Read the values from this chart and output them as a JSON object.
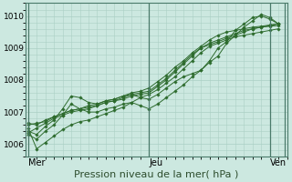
{
  "title": "Pression niveau de la mer( hPa )",
  "ylabel_ticks": [
    1006,
    1007,
    1008,
    1009,
    1010
  ],
  "xtick_labels": [
    "Mer",
    "Jeu",
    "Ven"
  ],
  "xtick_positions": [
    0,
    14,
    28
  ],
  "ylim": [
    1005.6,
    1010.4
  ],
  "xlim": [
    -0.3,
    30
  ],
  "bg_color": "#cce8e0",
  "grid_color": "#aacfc4",
  "line_color": "#2d6b2d",
  "vline_color": "#4a7a6a",
  "series": [
    {
      "x": [
        0,
        1,
        2,
        3,
        4,
        5,
        6,
        7,
        8,
        9,
        10,
        11,
        12,
        13,
        14,
        15,
        16,
        17,
        18,
        19,
        20,
        21,
        22,
        23,
        24,
        25,
        26,
        27,
        28,
        29
      ],
      "y": [
        1006.35,
        1006.5,
        1006.65,
        1006.8,
        1006.9,
        1007.0,
        1007.05,
        1007.1,
        1007.2,
        1007.3,
        1007.35,
        1007.4,
        1007.5,
        1007.55,
        1007.6,
        1007.8,
        1008.0,
        1008.25,
        1008.5,
        1008.75,
        1009.0,
        1009.1,
        1009.2,
        1009.3,
        1009.4,
        1009.5,
        1009.6,
        1009.65,
        1009.7,
        1009.75
      ]
    },
    {
      "x": [
        0,
        1,
        2,
        3,
        4,
        5,
        6,
        7,
        8,
        9,
        10,
        11,
        12,
        13,
        14,
        15,
        16,
        17,
        18,
        19,
        20,
        21,
        22,
        23,
        24,
        25,
        26,
        27,
        28,
        29
      ],
      "y": [
        1006.6,
        1006.65,
        1006.7,
        1006.85,
        1006.95,
        1007.05,
        1007.1,
        1007.15,
        1007.2,
        1007.3,
        1007.35,
        1007.45,
        1007.55,
        1007.6,
        1007.65,
        1007.85,
        1008.05,
        1008.3,
        1008.55,
        1008.8,
        1009.0,
        1009.15,
        1009.25,
        1009.35,
        1009.45,
        1009.55,
        1009.6,
        1009.65,
        1009.68,
        1009.7
      ]
    },
    {
      "x": [
        0,
        1,
        2,
        3,
        4,
        5,
        6,
        7,
        8,
        9,
        10,
        11,
        12,
        13,
        14,
        15,
        16,
        17,
        18,
        19,
        20,
        21,
        22,
        23,
        24,
        25,
        26,
        27,
        28,
        29
      ],
      "y": [
        1006.5,
        1005.85,
        1006.05,
        1006.25,
        1006.45,
        1006.6,
        1006.7,
        1006.75,
        1006.85,
        1006.95,
        1007.05,
        1007.15,
        1007.3,
        1007.45,
        1007.55,
        1007.7,
        1007.9,
        1008.1,
        1008.35,
        1008.6,
        1008.85,
        1009.05,
        1009.15,
        1009.25,
        1009.35,
        1009.4,
        1009.45,
        1009.5,
        1009.55,
        1009.6
      ]
    },
    {
      "x": [
        0,
        1,
        2,
        3,
        4,
        5,
        6,
        7,
        8,
        9,
        10,
        11,
        12,
        13,
        14,
        15,
        16,
        17,
        18,
        19,
        20,
        21,
        22,
        23,
        24,
        25,
        26,
        27,
        28,
        29
      ],
      "y": [
        1006.65,
        1006.6,
        1006.75,
        1006.85,
        1006.95,
        1007.05,
        1007.1,
        1007.2,
        1007.25,
        1007.35,
        1007.4,
        1007.5,
        1007.6,
        1007.65,
        1007.75,
        1007.95,
        1008.15,
        1008.4,
        1008.6,
        1008.85,
        1009.05,
        1009.25,
        1009.4,
        1009.5,
        1009.55,
        1009.6,
        1009.65,
        1009.68,
        1009.72,
        1009.76
      ]
    },
    {
      "x": [
        0,
        1,
        2,
        3,
        4,
        5,
        6,
        7,
        8,
        9,
        10,
        11,
        12,
        13,
        14,
        15,
        16,
        17,
        18,
        19,
        20,
        21,
        22,
        23,
        24,
        25,
        26,
        27,
        28,
        29
      ],
      "y": [
        1006.4,
        1006.3,
        1006.55,
        1006.75,
        1007.1,
        1007.5,
        1007.45,
        1007.3,
        1007.25,
        1007.35,
        1007.4,
        1007.5,
        1007.55,
        1007.45,
        1007.4,
        1007.55,
        1007.75,
        1007.95,
        1008.1,
        1008.2,
        1008.3,
        1008.6,
        1009.0,
        1009.2,
        1009.55,
        1009.75,
        1009.95,
        1010.0,
        1009.9,
        1009.75
      ]
    },
    {
      "x": [
        0,
        1,
        2,
        3,
        4,
        5,
        6,
        7,
        8,
        9,
        10,
        11,
        12,
        13,
        14,
        15,
        16,
        17,
        18,
        19,
        20,
        21,
        22,
        23,
        24,
        25,
        26,
        27,
        28,
        29
      ],
      "y": [
        1006.3,
        1006.15,
        1006.4,
        1006.6,
        1006.9,
        1007.25,
        1007.1,
        1007.0,
        1007.0,
        1007.1,
        1007.15,
        1007.25,
        1007.3,
        1007.2,
        1007.1,
        1007.25,
        1007.45,
        1007.65,
        1007.85,
        1008.1,
        1008.3,
        1008.55,
        1008.75,
        1009.15,
        1009.4,
        1009.65,
        1009.85,
        1010.05,
        1009.95,
        1009.75
      ]
    }
  ]
}
